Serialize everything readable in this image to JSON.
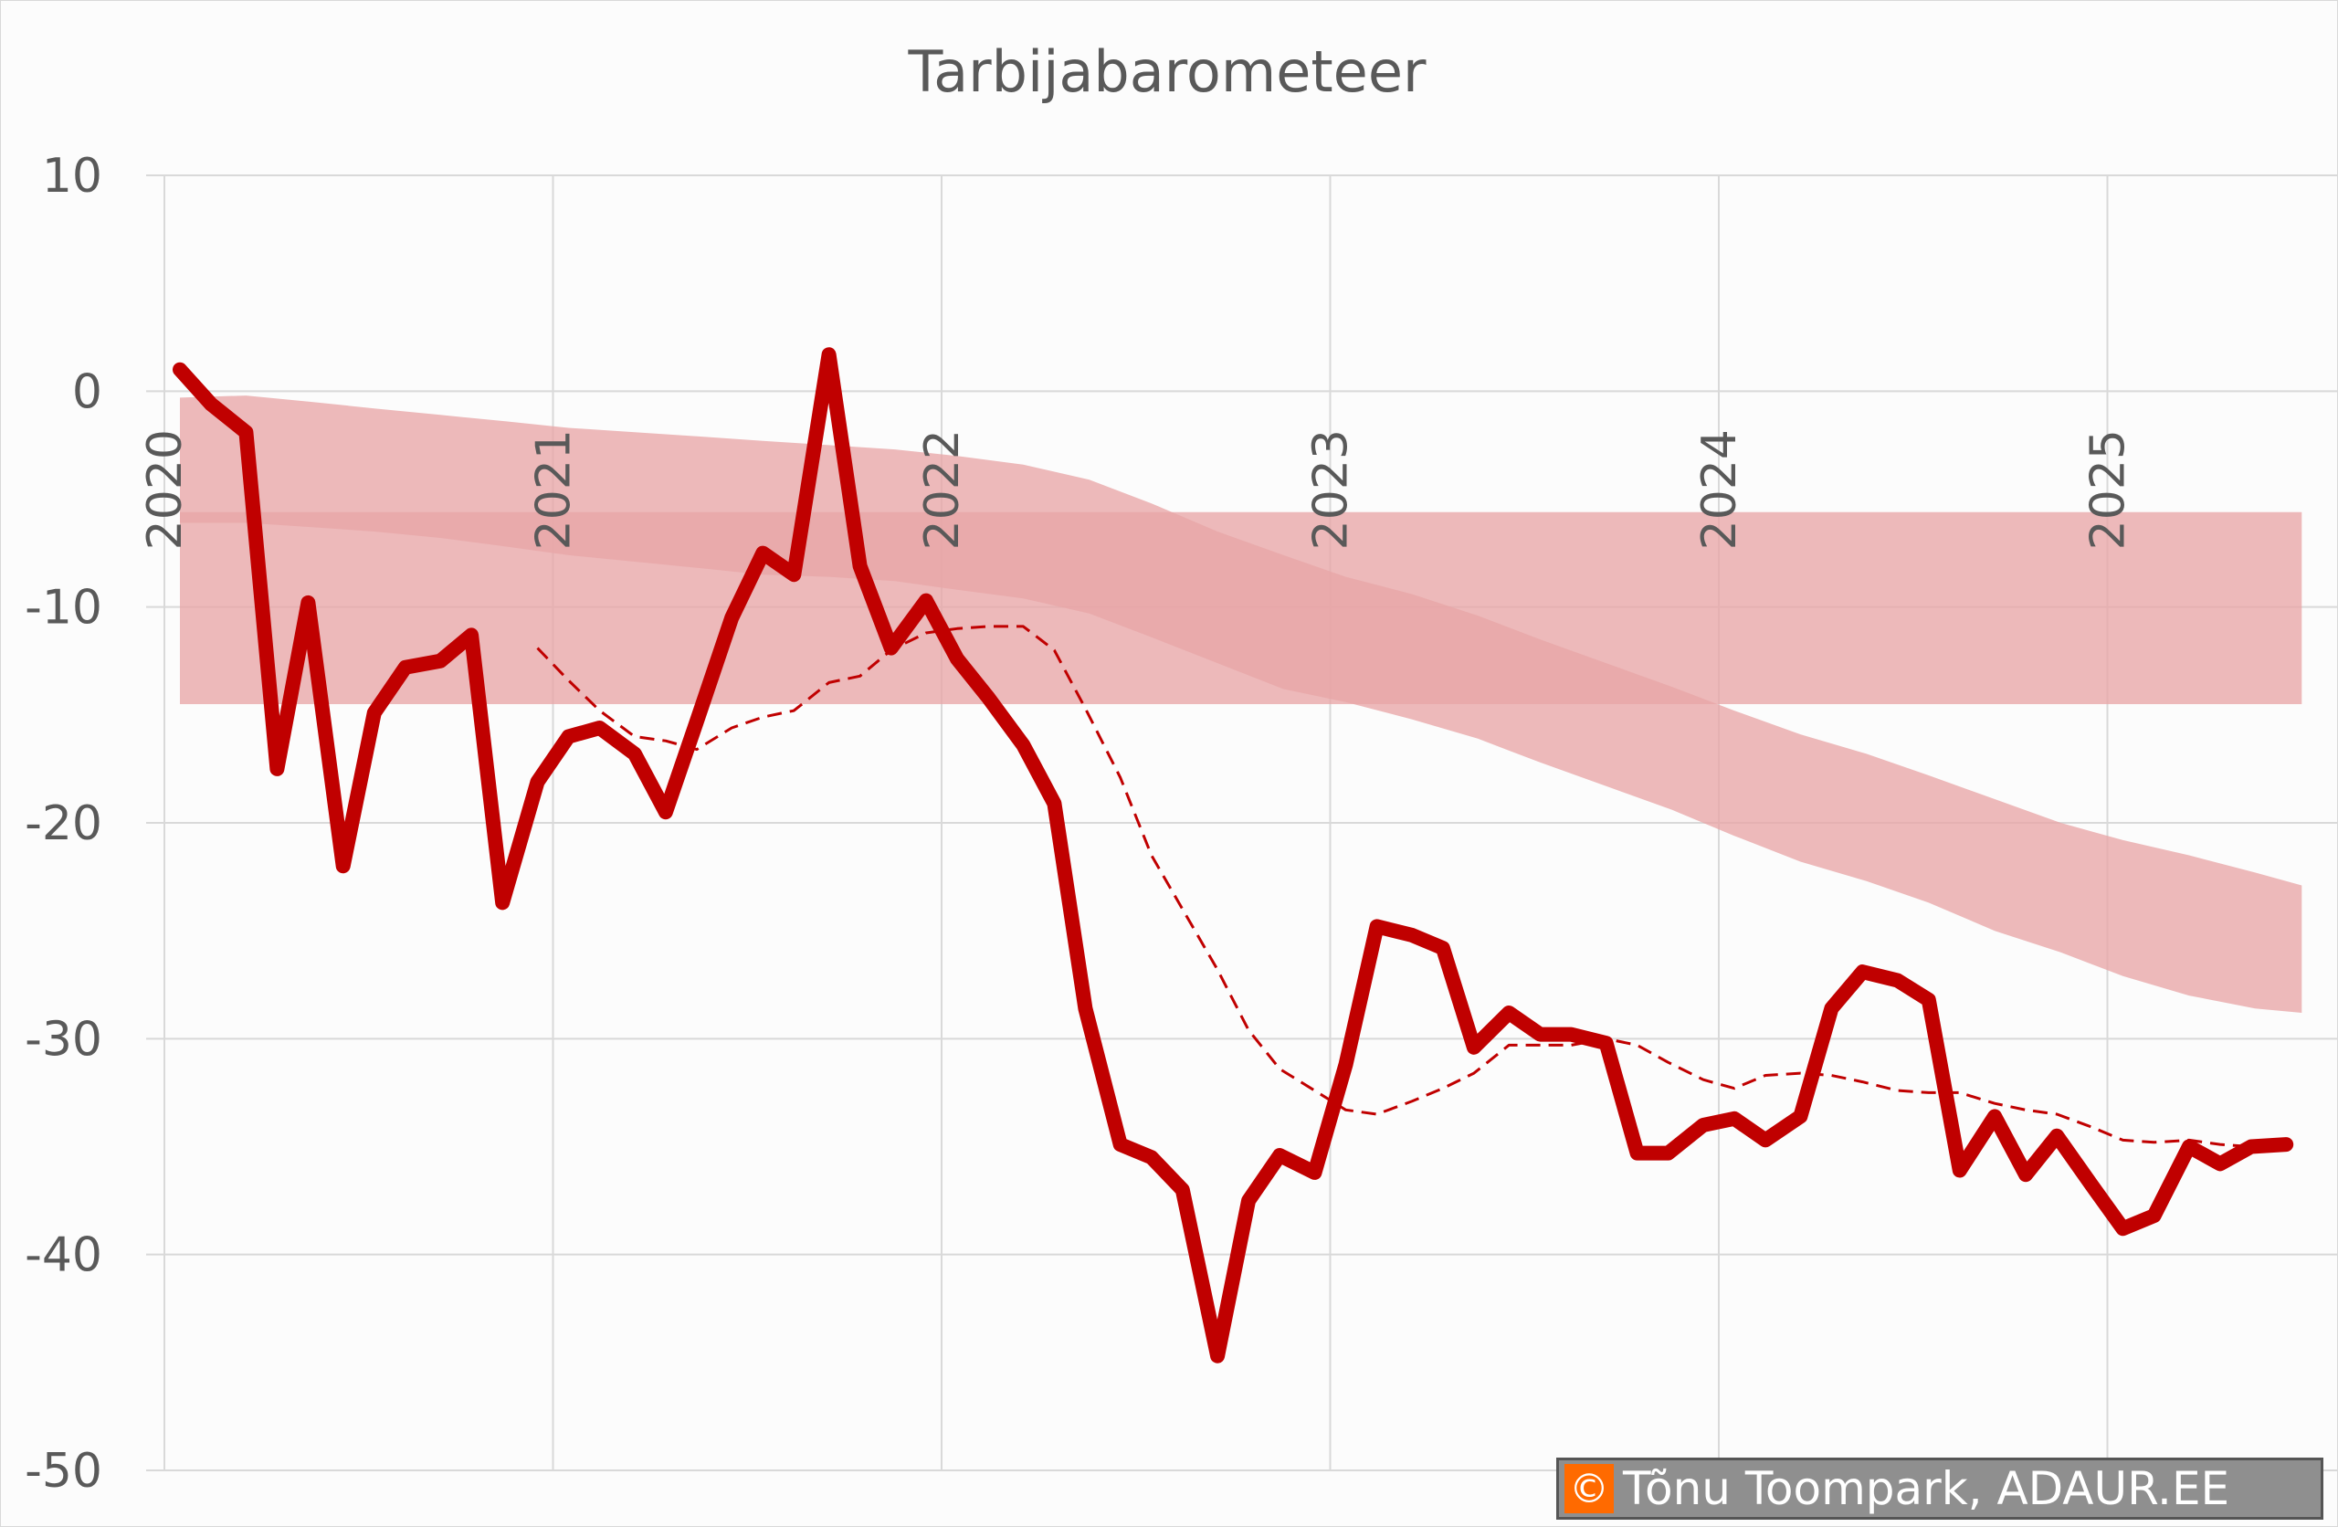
{
  "chart_data": {
    "type": "line",
    "title": "Tarbijabarometeer",
    "xlabel": "",
    "ylabel": "",
    "ylim": [
      -50,
      10
    ],
    "xlim": [
      2019.95,
      2025.6
    ],
    "yticks": [
      10,
      0,
      -10,
      -20,
      -30,
      -40,
      -50
    ],
    "xticks": [
      "2020",
      "2021",
      "2022",
      "2023",
      "2024",
      "2025"
    ],
    "grid": true,
    "legend": "none",
    "colors": {
      "main_line": "#c00000",
      "dashed_line": "#c00000",
      "band": "#e8a5a7",
      "grid": "#d9d9d9",
      "text": "#595959"
    },
    "main_series": {
      "x": [
        2020.04,
        2020.12,
        2020.21,
        2020.29,
        2020.37,
        2020.46,
        2020.54,
        2020.62,
        2020.71,
        2020.79,
        2020.87,
        2020.96,
        2021.04,
        2021.12,
        2021.21,
        2021.29,
        2021.37,
        2021.46,
        2021.54,
        2021.62,
        2021.71,
        2021.79,
        2021.87,
        2021.96,
        2022.04,
        2022.12,
        2022.21,
        2022.29,
        2022.37,
        2022.46,
        2022.54,
        2022.62,
        2022.71,
        2022.79,
        2022.87,
        2022.96,
        2023.04,
        2023.12,
        2023.21,
        2023.29,
        2023.37,
        2023.46,
        2023.54,
        2023.62,
        2023.71,
        2023.79,
        2023.87,
        2023.96,
        2024.04,
        2024.12,
        2024.21,
        2024.29,
        2024.37,
        2024.46,
        2024.54,
        2024.62,
        2024.71,
        2024.79,
        2024.87,
        2024.96,
        2025.04,
        2025.12,
        2025.21,
        2025.29,
        2025.37,
        2025.46
      ],
      "values": [
        1.0,
        -0.6,
        -1.9,
        -17.5,
        -9.8,
        -22.0,
        -14.9,
        -12.8,
        -12.5,
        -11.3,
        -23.7,
        -18.1,
        -16.0,
        -15.6,
        -16.8,
        -19.5,
        -15.3,
        -10.5,
        -7.5,
        -8.5,
        1.7,
        -8.1,
        -11.9,
        -9.7,
        -12.4,
        -14.2,
        -16.4,
        -19.1,
        -28.6,
        -34.9,
        -35.5,
        -37.0,
        -44.7,
        -37.5,
        -35.4,
        -36.2,
        -31.2,
        -24.8,
        -25.2,
        -25.8,
        -30.4,
        -28.8,
        -29.8,
        -29.8,
        -30.2,
        -35.3,
        -35.3,
        -34.0,
        -33.7,
        -34.7,
        -33.6,
        -28.6,
        -26.9,
        -27.3,
        -28.2,
        -36.1,
        -33.6,
        -36.3,
        -34.5,
        -36.8,
        -38.8,
        -38.2,
        -35.0,
        -35.8,
        -35.0,
        -34.9
      ]
    },
    "dashed_series": {
      "x": [
        2020.96,
        2021.04,
        2021.12,
        2021.21,
        2021.29,
        2021.37,
        2021.46,
        2021.54,
        2021.62,
        2021.71,
        2021.79,
        2021.87,
        2021.96,
        2022.04,
        2022.12,
        2022.21,
        2022.29,
        2022.37,
        2022.46,
        2022.54,
        2022.62,
        2022.71,
        2022.79,
        2022.87,
        2022.96,
        2023.04,
        2023.12,
        2023.21,
        2023.29,
        2023.37,
        2023.46,
        2023.54,
        2023.62,
        2023.71,
        2023.79,
        2023.87,
        2023.96,
        2024.04,
        2024.12,
        2024.21,
        2024.29,
        2024.37,
        2024.46,
        2024.54,
        2024.62,
        2024.71,
        2024.79,
        2024.87,
        2024.96,
        2025.04,
        2025.12,
        2025.21,
        2025.29,
        2025.37
      ],
      "values": [
        -11.9,
        -13.4,
        -14.8,
        -16.0,
        -16.2,
        -16.6,
        -15.6,
        -15.1,
        -14.8,
        -13.5,
        -13.2,
        -12.0,
        -11.2,
        -11.0,
        -10.9,
        -10.9,
        -12.0,
        -14.7,
        -17.9,
        -21.5,
        -24.0,
        -26.8,
        -29.6,
        -31.4,
        -32.4,
        -33.3,
        -33.5,
        -32.9,
        -32.3,
        -31.6,
        -30.3,
        -30.3,
        -30.3,
        -30.0,
        -30.3,
        -31.1,
        -31.9,
        -32.3,
        -31.7,
        -31.6,
        -31.7,
        -32.0,
        -32.4,
        -32.5,
        -32.5,
        -33.0,
        -33.3,
        -33.5,
        -34.1,
        -34.7,
        -34.8,
        -34.7,
        -34.9,
        -35.0
      ]
    },
    "long_term_band": {
      "x": [
        2020.04,
        2025.5
      ],
      "upper": [
        -5.6,
        -5.6
      ],
      "lower": [
        -14.5,
        -14.5
      ]
    },
    "declining_band": {
      "x": [
        2020.04,
        2020.21,
        2020.38,
        2020.54,
        2020.71,
        2020.88,
        2021.04,
        2021.21,
        2021.38,
        2021.54,
        2021.71,
        2021.88,
        2022.04,
        2022.21,
        2022.38,
        2022.54,
        2022.71,
        2022.88,
        2023.04,
        2023.21,
        2023.38,
        2023.54,
        2023.71,
        2023.88,
        2024.04,
        2024.21,
        2024.38,
        2024.54,
        2024.71,
        2024.88,
        2025.04,
        2025.21,
        2025.38,
        2025.5
      ],
      "upper": [
        -0.3,
        -0.2,
        -0.5,
        -0.8,
        -1.1,
        -1.4,
        -1.7,
        -1.9,
        -2.1,
        -2.3,
        -2.5,
        -2.7,
        -3.0,
        -3.4,
        -4.1,
        -5.2,
        -6.5,
        -7.6,
        -8.6,
        -9.4,
        -10.4,
        -11.5,
        -12.6,
        -13.7,
        -14.8,
        -15.9,
        -16.8,
        -17.8,
        -18.9,
        -20.0,
        -20.8,
        -21.5,
        -22.3,
        -22.9
      ],
      "lower": [
        -6.1,
        -6.1,
        -6.3,
        -6.5,
        -6.8,
        -7.2,
        -7.6,
        -7.9,
        -8.2,
        -8.5,
        -8.6,
        -8.8,
        -9.2,
        -9.6,
        -10.3,
        -11.4,
        -12.6,
        -13.8,
        -14.4,
        -15.2,
        -16.1,
        -17.2,
        -18.3,
        -19.4,
        -20.6,
        -21.8,
        -22.7,
        -23.7,
        -25.0,
        -26.0,
        -27.1,
        -28.0,
        -28.6,
        -28.8
      ]
    }
  },
  "credit": {
    "symbol": "©",
    "text": "Tõnu Toompark, ADAUR.EE"
  }
}
